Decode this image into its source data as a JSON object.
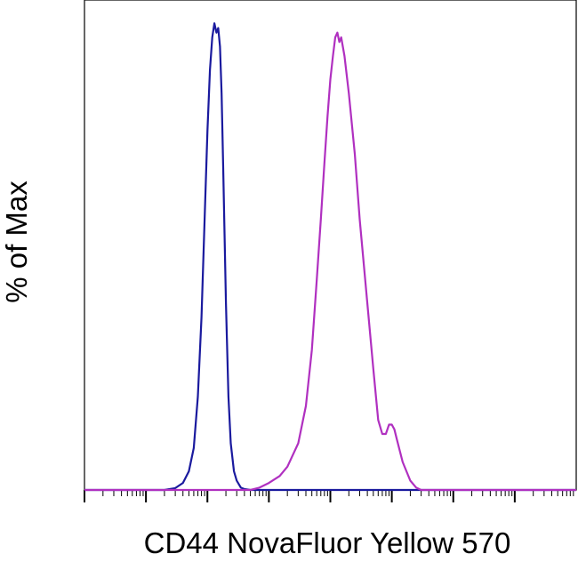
{
  "chart_data": {
    "type": "line",
    "title": "",
    "xlabel": "CD44 NovaFluor Yellow 570",
    "ylabel": "% of Max",
    "x_scale": "log",
    "xlim": [
      1,
      100000000
    ],
    "ylim": [
      0,
      105
    ],
    "grid": false,
    "legend": "none",
    "series": [
      {
        "color": "#1a1a9e",
        "x": [
          20,
          30,
          40,
          50,
          60,
          70,
          80,
          90,
          100,
          110,
          120,
          130,
          140,
          150,
          160,
          170,
          180,
          190,
          200,
          220,
          240,
          270,
          300,
          350,
          400,
          500
        ],
        "y": [
          0,
          0.4,
          1.5,
          4,
          9,
          20,
          37,
          58,
          77,
          90,
          97,
          100,
          98,
          99,
          95,
          85,
          70,
          55,
          40,
          20,
          10,
          4,
          2,
          0.5,
          0.2,
          0
        ]
      },
      {
        "color": "#b030c0",
        "x": [
          500,
          700,
          1000,
          1500,
          2000,
          3000,
          4000,
          5000,
          6000,
          7000,
          8000,
          9000,
          10000,
          11000,
          12000,
          13000,
          14000,
          15000,
          17000,
          20000,
          25000,
          30000,
          40000,
          50000,
          60000,
          70000,
          80000,
          90000,
          100000,
          110000,
          120000,
          150000,
          200000,
          250000,
          300000
        ],
        "y": [
          0,
          0.5,
          1.5,
          3,
          5,
          10,
          18,
          30,
          45,
          58,
          70,
          80,
          88,
          93,
          97,
          98,
          96,
          97,
          93,
          85,
          72,
          58,
          40,
          26,
          15,
          12,
          12,
          14,
          14,
          13,
          11,
          6,
          2,
          0.5,
          0
        ]
      }
    ]
  }
}
